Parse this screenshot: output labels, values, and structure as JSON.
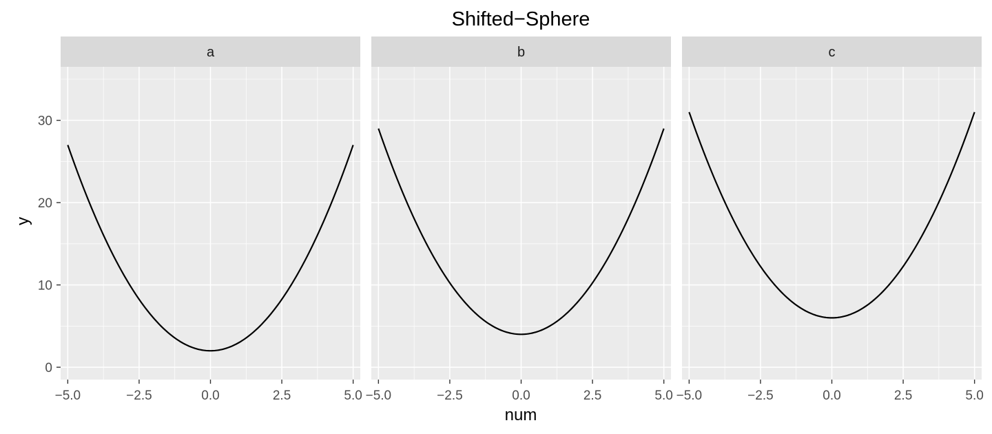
{
  "chart_data": {
    "type": "line",
    "title": "Shifted−Sphere",
    "xlabel": "num",
    "ylabel": "y",
    "xlim": [
      -5.25,
      5.25
    ],
    "ylim": [
      -1.5,
      36.5
    ],
    "x_ticks": [
      -5,
      -2.5,
      0,
      2.5,
      5
    ],
    "x_tick_labels": [
      "−5.0",
      "−2.5",
      "0.0",
      "2.5",
      "5.0"
    ],
    "y_ticks": [
      0,
      10,
      20,
      30
    ],
    "y_tick_labels": [
      "0",
      "10",
      "20",
      "30"
    ],
    "grid": true,
    "facets": [
      {
        "label": "a",
        "series": [
          {
            "equation": "x^2 + 2",
            "x_range": [
              -5,
              5
            ],
            "min": 2,
            "endpoints": 27
          }
        ]
      },
      {
        "label": "b",
        "series": [
          {
            "equation": "x^2 + 4",
            "x_range": [
              -5,
              5
            ],
            "min": 4,
            "endpoints": 29
          }
        ]
      },
      {
        "label": "c",
        "series": [
          {
            "equation": "x^2 + 6",
            "x_range": [
              -5,
              5
            ],
            "min": 6,
            "endpoints": 31
          }
        ]
      }
    ],
    "colors": {
      "panel_bg": "#ebebeb",
      "strip_bg": "#d9d9d9",
      "grid": "#ffffff",
      "line": "#000000",
      "tick": "#333333"
    }
  }
}
